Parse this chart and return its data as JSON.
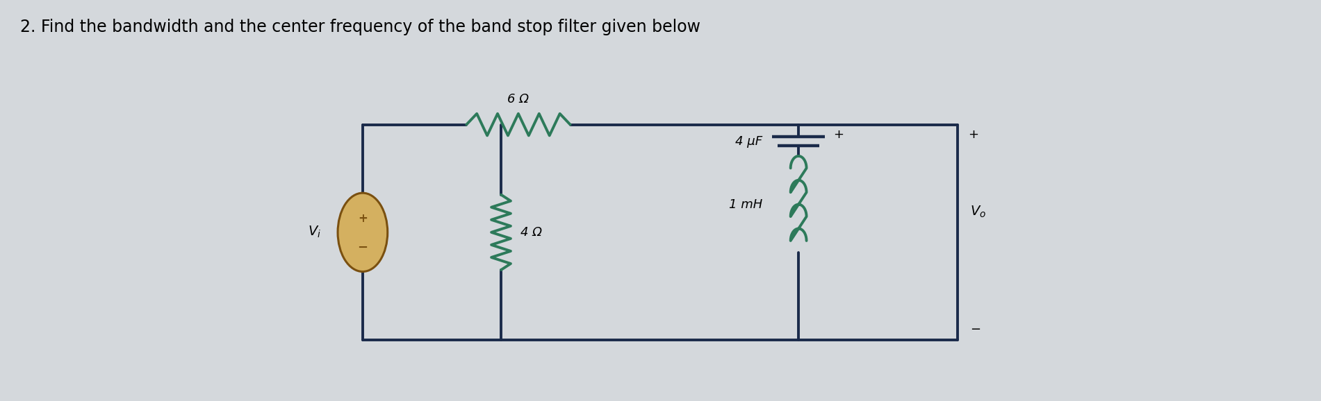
{
  "title": "2. Find the bandwidth and the center frequency of the band stop filter given below",
  "title_fontsize": 17,
  "bg_color": "#d4d8dc",
  "wire_color": "#1a2a4a",
  "component_color": "#2d7a5a",
  "text_color": "#000000",
  "fig_width": 19.01,
  "fig_height": 5.78,
  "R1_label": "6 Ω",
  "R2_label": "4 Ω",
  "C_label": "4 μF",
  "L_label": "1 mH",
  "Vi_label": "V$_i$",
  "Vo_label": "V$_o$",
  "plus": "+",
  "minus": "−",
  "src_face": "#d4b060",
  "src_edge": "#7a5010"
}
